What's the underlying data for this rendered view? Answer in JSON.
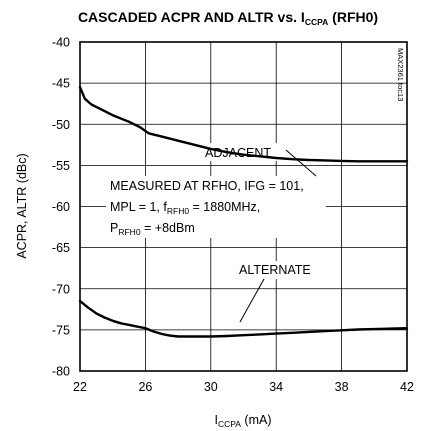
{
  "chart_data": {
    "type": "line",
    "title": {
      "main": "CASCADED ACPR AND ALTR vs. I",
      "sub": "CCPA",
      "tail": " (RFH0)"
    },
    "xlabel": {
      "main": "I",
      "sub": "CCPA",
      "tail": " (mA)"
    },
    "ylabel": "ACPR, ALTR (dBc)",
    "xlim": [
      22,
      42
    ],
    "ylim": [
      -80,
      -40
    ],
    "xticks": [
      22,
      26,
      30,
      34,
      38,
      42
    ],
    "yticks": [
      -40,
      -45,
      -50,
      -55,
      -60,
      -65,
      -70,
      -75,
      -80
    ],
    "grid": true,
    "series": [
      {
        "name": "ADJACENT",
        "x": [
          22,
          22.3,
          22.7,
          23.2,
          24,
          25,
          25.7,
          26.2,
          27,
          28,
          29,
          30,
          31,
          32,
          33,
          34,
          35,
          36,
          37,
          38,
          39,
          40,
          41,
          42
        ],
        "y": [
          -45.5,
          -46.9,
          -47.6,
          -48.1,
          -48.9,
          -49.7,
          -50.4,
          -51.1,
          -51.5,
          -52.0,
          -52.5,
          -53.0,
          -53.4,
          -53.7,
          -53.9,
          -54.1,
          -54.25,
          -54.35,
          -54.4,
          -54.45,
          -54.5,
          -54.5,
          -54.5,
          -54.5
        ]
      },
      {
        "name": "ALTERNATE",
        "x": [
          22,
          22.5,
          23,
          23.5,
          24,
          24.5,
          25,
          25.5,
          26,
          26.5,
          27,
          27.5,
          28,
          29,
          30,
          31,
          32,
          33,
          34,
          35,
          36,
          37,
          38,
          39,
          40,
          41,
          42
        ],
        "y": [
          -71.5,
          -72.3,
          -73.0,
          -73.5,
          -73.9,
          -74.2,
          -74.4,
          -74.6,
          -74.8,
          -75.2,
          -75.5,
          -75.7,
          -75.8,
          -75.8,
          -75.8,
          -75.75,
          -75.65,
          -75.55,
          -75.45,
          -75.35,
          -75.25,
          -75.15,
          -75.05,
          -74.95,
          -74.9,
          -74.85,
          -74.8
        ]
      }
    ],
    "annotations": {
      "adjacent": "ADJACENT",
      "alternate": "ALTERNATE",
      "conditions_line1": "MEASURED AT RFHO, IFG = 101,",
      "conditions_line2_pre": "MPL = 1, f",
      "conditions_line2_sub": "RFH0",
      "conditions_line2_post": " = 1880MHz,",
      "conditions_line3_pre": "P",
      "conditions_line3_sub": "RFH0",
      "conditions_line3_post": " = +8dBm"
    },
    "side_code": "MAX2361 toc13"
  }
}
